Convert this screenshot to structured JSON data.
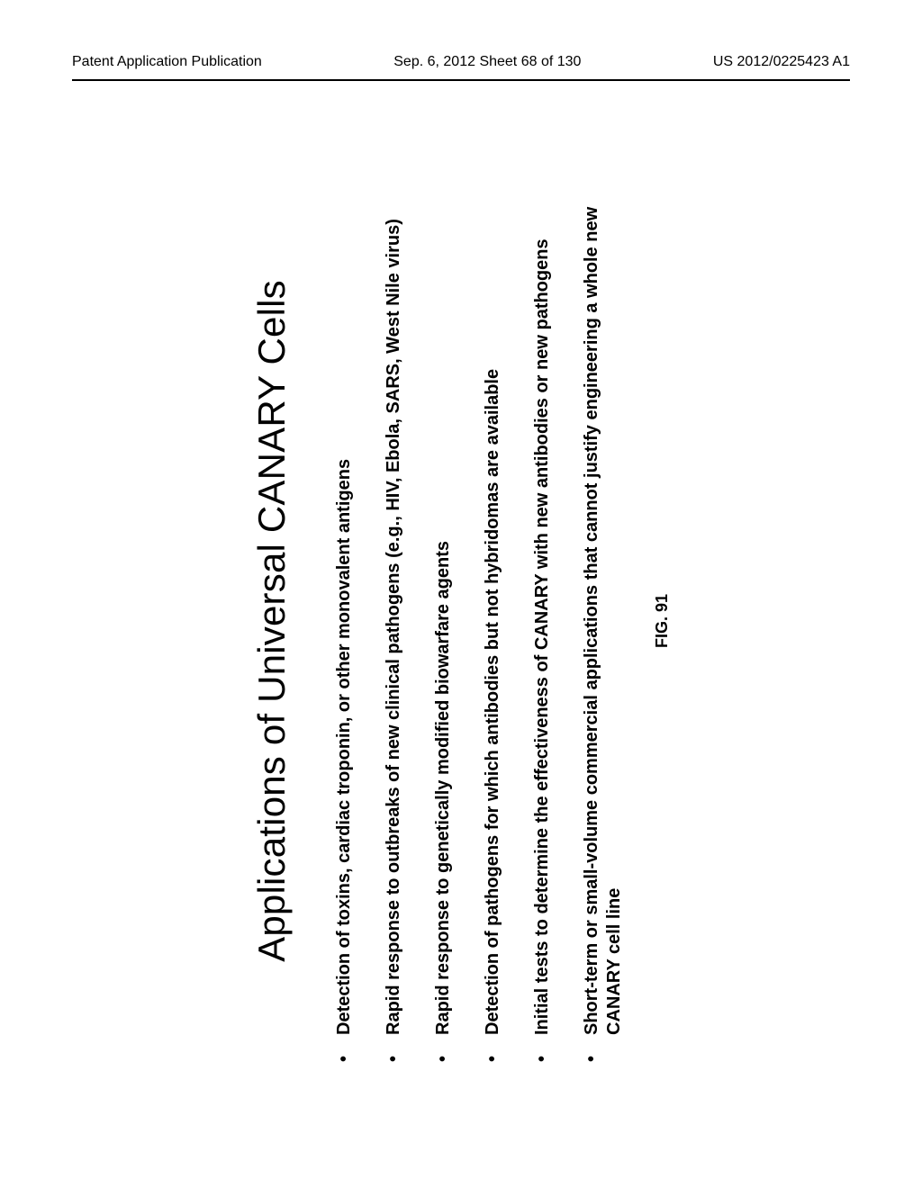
{
  "header": {
    "left": "Patent Application Publication",
    "center": "Sep. 6, 2012  Sheet 68 of 130",
    "right": "US 2012/0225423 A1"
  },
  "slide": {
    "title": "Applications of Universal CANARY Cells",
    "bullets": [
      "Detection of toxins, cardiac troponin, or other monovalent antigens",
      "Rapid response to outbreaks of new clinical pathogens (e.g., HIV, Ebola, SARS, West Nile virus)",
      "Rapid response to genetically modified biowarfare agents",
      "Detection of pathogens for which antibodies but not hybridomas are available",
      "Initial tests to determine the effectiveness of CANARY with new antibodies or new pathogens",
      "Short-term or small-volume commercial applications that cannot justify engineering a whole new CANARY cell line"
    ],
    "figure_label": "FIG. 91"
  }
}
